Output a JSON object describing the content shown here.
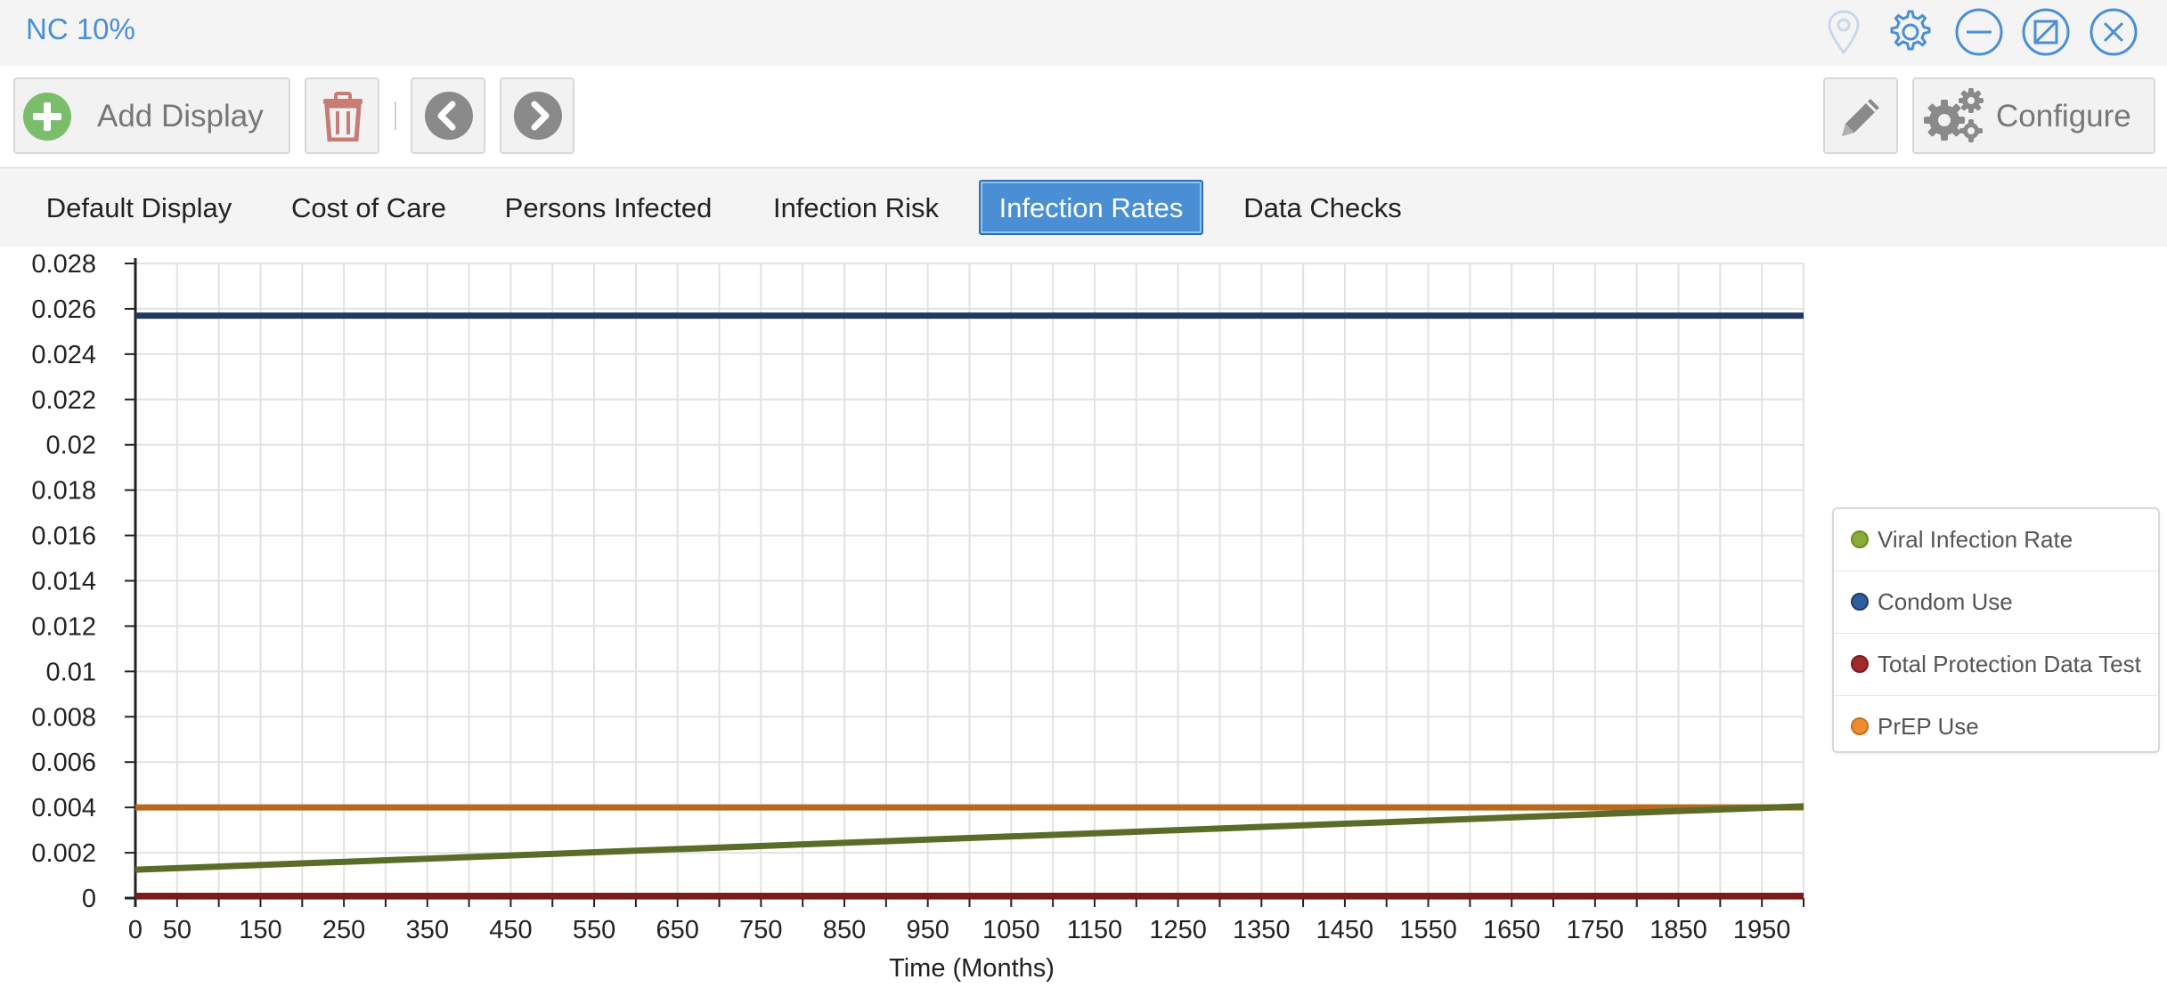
{
  "window": {
    "title": "NC 10%"
  },
  "window_icons": [
    "location-pin-icon",
    "gear-icon",
    "minimize-icon",
    "popout-icon",
    "close-icon"
  ],
  "toolbar": {
    "add_display_label": "Add Display",
    "configure_label": "Configure",
    "icons": [
      "plus-circle-icon",
      "trash-icon",
      "chevron-left-icon",
      "chevron-right-icon",
      "pencil-icon",
      "gears-icon"
    ]
  },
  "tabs": [
    {
      "label": "Default Display"
    },
    {
      "label": "Cost of Care"
    },
    {
      "label": "Persons Infected"
    },
    {
      "label": "Infection Risk"
    },
    {
      "label": "Infection Rates",
      "active": true
    },
    {
      "label": "Data Checks"
    }
  ],
  "colors": {
    "accent": "#4a8fd4",
    "grid": "#e2e2e2",
    "axis": "#222222"
  },
  "chart_data": {
    "type": "line",
    "title": "",
    "xlabel": "Time (Months)",
    "ylabel": "",
    "xlim": [
      0,
      2000
    ],
    "ylim": [
      0,
      0.028
    ],
    "x_ticks": [
      0,
      50,
      150,
      250,
      350,
      450,
      550,
      650,
      750,
      850,
      950,
      1050,
      1150,
      1250,
      1350,
      1450,
      1550,
      1650,
      1750,
      1850,
      1950
    ],
    "y_ticks": [
      "0",
      "0.002",
      "0.004",
      "0.006",
      "0.008",
      "0.01",
      "0.012",
      "0.014",
      "0.016",
      "0.018",
      "0.02",
      "0.022",
      "0.024",
      "0.026",
      "0.028"
    ],
    "grid": true,
    "legend_position": "right",
    "series": [
      {
        "name": "Viral Infection Rate",
        "marker_color": "#8aab3a",
        "line_color": "#5b6b28",
        "x": [
          0,
          2000
        ],
        "values": [
          0.00125,
          0.00405
        ]
      },
      {
        "name": "Condom Use",
        "marker_color": "#2e5e9e",
        "line_color": "#1f3a62",
        "x": [
          0,
          2000
        ],
        "values": [
          0.0257,
          0.0257
        ]
      },
      {
        "name": "Total Protection Data Test",
        "marker_color": "#a32a2a",
        "line_color": "#7a1c1c",
        "x": [
          0,
          2000
        ],
        "values": [
          0.0001,
          0.0001
        ]
      },
      {
        "name": "PrEP Use",
        "marker_color": "#ef8c2e",
        "line_color": "#b7691e",
        "x": [
          0,
          2000
        ],
        "values": [
          0.004,
          0.004
        ]
      }
    ]
  }
}
